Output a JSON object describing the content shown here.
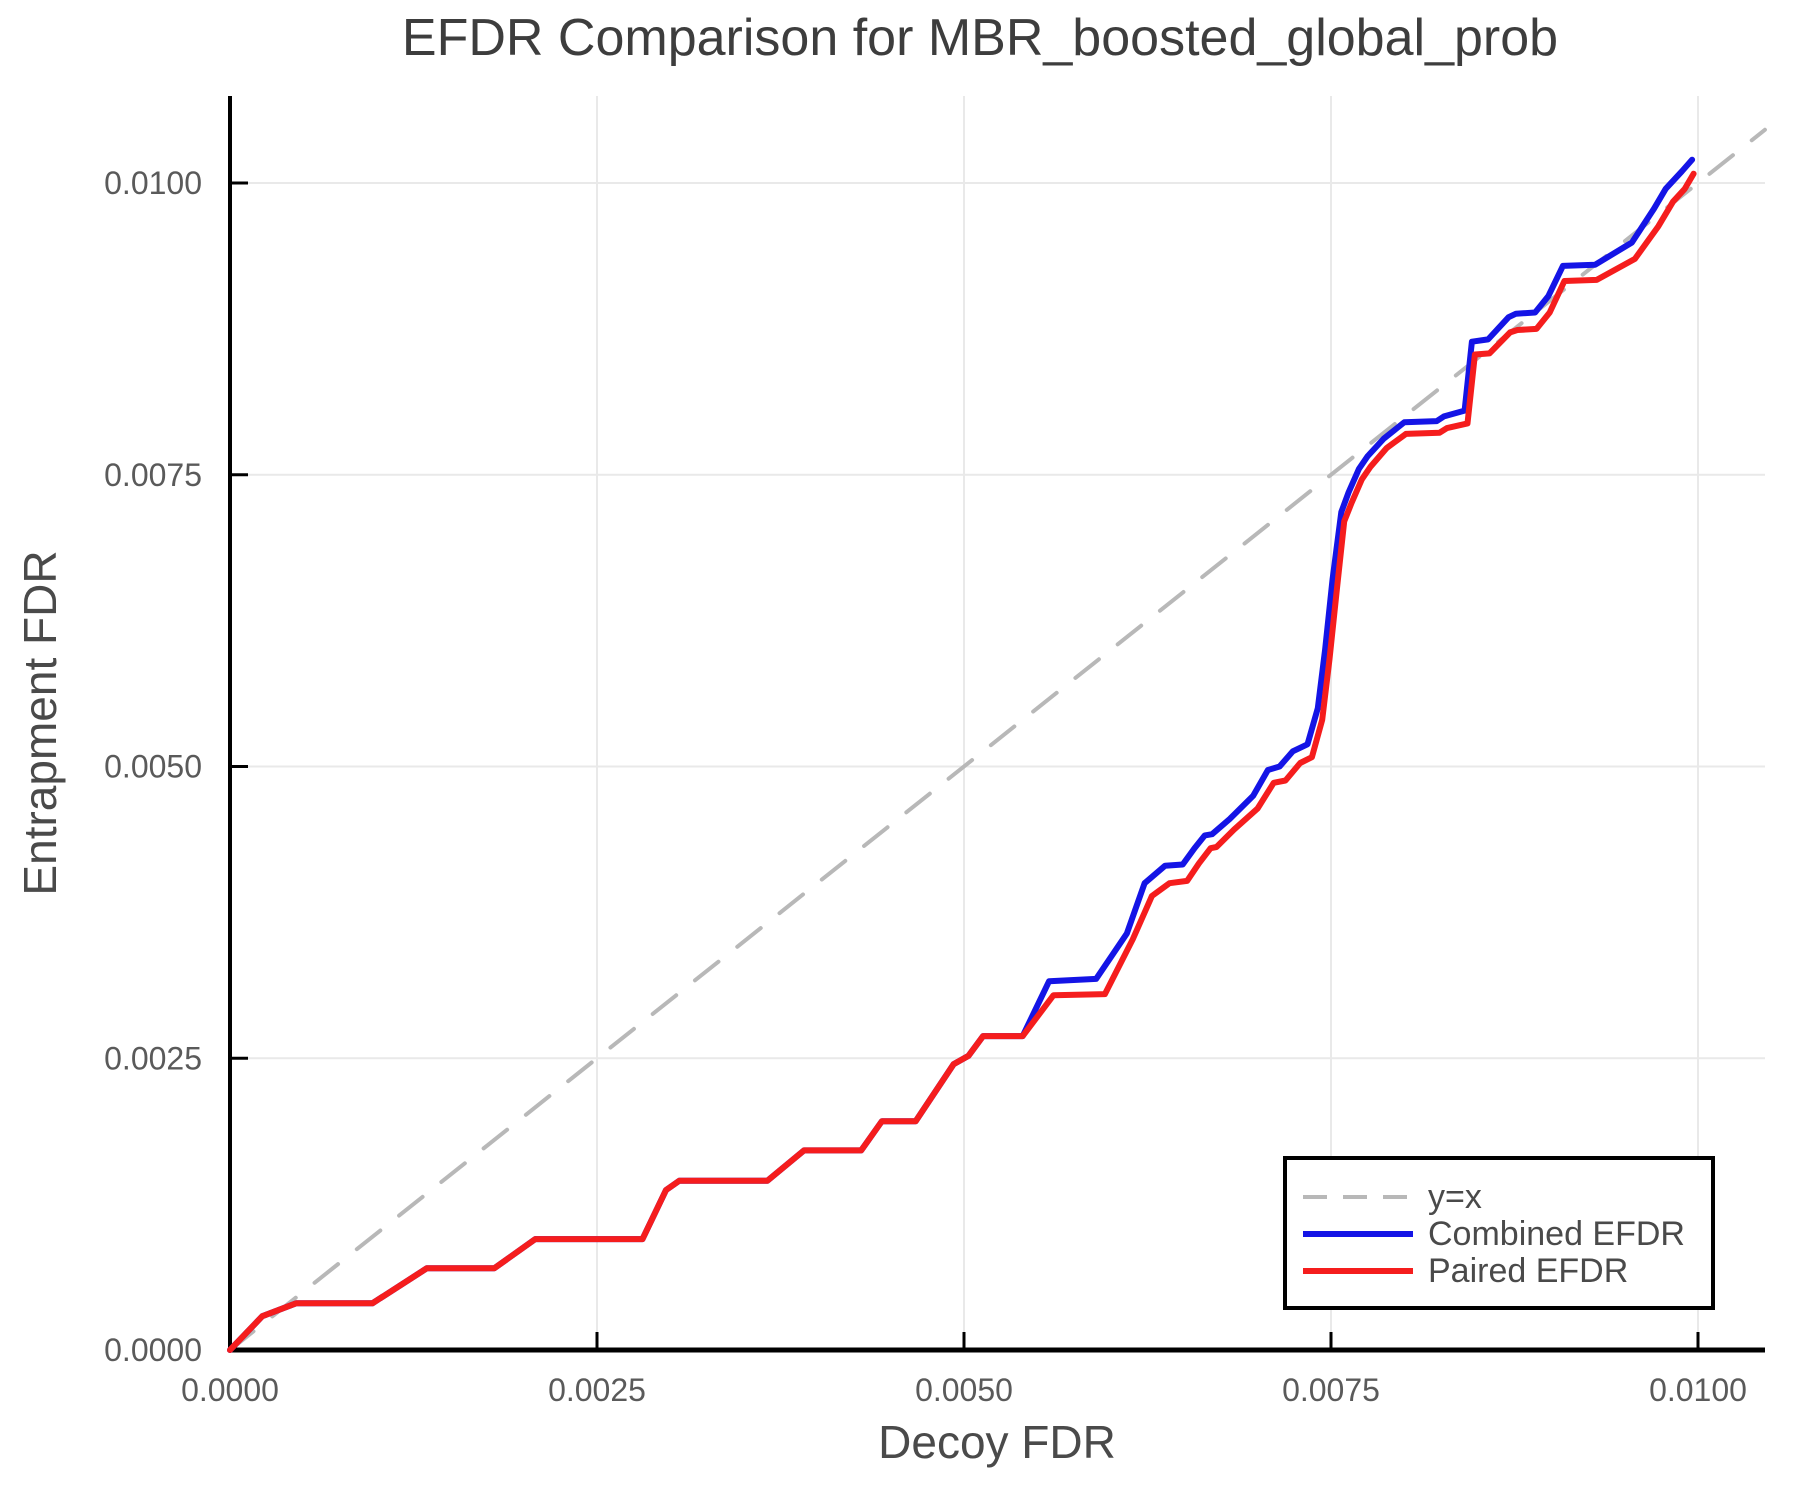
{
  "title": "EFDR Comparison for MBR_boosted_global_prob",
  "axes": {
    "x": {
      "label": "Decoy FDR",
      "tick_values": [
        0.0,
        0.0025,
        0.005,
        0.0075,
        0.01
      ],
      "tick_labels": [
        "0.0000",
        "0.0025",
        "0.0050",
        "0.0075",
        "0.0100"
      ]
    },
    "y": {
      "label": "Entrapment FDR",
      "tick_values": [
        0.0,
        0.0025,
        0.005,
        0.0075,
        0.01
      ],
      "tick_labels": [
        "0.0000",
        "0.0025",
        "0.0050",
        "0.0075",
        "0.0100"
      ]
    }
  },
  "legend": {
    "items": [
      {
        "label": "y=x",
        "color": "#b8b8b8",
        "style": "dashed"
      },
      {
        "label": "Combined EFDR",
        "color": "#1414e6",
        "style": "solid"
      },
      {
        "label": "Paired EFDR",
        "color": "#f51d1d",
        "style": "solid"
      }
    ]
  },
  "colors": {
    "grid": "#e9e9e9",
    "spine": "#000000",
    "identity": "#b8b8b8",
    "combined": "#1414e6",
    "paired": "#f51d1d"
  },
  "chart_data": {
    "type": "line",
    "title": "EFDR Comparison for MBR_boosted_global_prob",
    "xlabel": "Decoy FDR",
    "ylabel": "Entrapment FDR",
    "xlim": [
      0.0,
      0.010456
    ],
    "ylim": [
      0.0,
      0.010745
    ],
    "grid": true,
    "legend_position": "bottom-right",
    "series": [
      {
        "name": "y=x",
        "style": "dashed",
        "color": "#b8b8b8",
        "points": [
          [
            0.0,
            0.0
          ],
          [
            0.010456,
            0.010456
          ]
        ]
      },
      {
        "name": "Combined EFDR",
        "style": "solid",
        "color": "#1414e6",
        "points": [
          [
            0.0,
            0.0
          ],
          [
            0.00022,
            0.00029
          ],
          [
            0.00045,
            0.0004
          ],
          [
            0.00097,
            0.0004
          ],
          [
            0.00134,
            0.0007
          ],
          [
            0.0018,
            0.0007
          ],
          [
            0.00208,
            0.00095
          ],
          [
            0.00281,
            0.00095
          ],
          [
            0.00297,
            0.00137
          ],
          [
            0.00306,
            0.00145
          ],
          [
            0.00366,
            0.00145
          ],
          [
            0.00391,
            0.00171
          ],
          [
            0.0043,
            0.00171
          ],
          [
            0.00444,
            0.00196
          ],
          [
            0.00467,
            0.00196
          ],
          [
            0.00493,
            0.00245
          ],
          [
            0.00503,
            0.00252
          ],
          [
            0.00513,
            0.00269
          ],
          [
            0.0054,
            0.00269
          ],
          [
            0.00558,
            0.00316
          ],
          [
            0.0059,
            0.00318
          ],
          [
            0.00611,
            0.00357
          ],
          [
            0.00623,
            0.004
          ],
          [
            0.00637,
            0.00415
          ],
          [
            0.00649,
            0.00416
          ],
          [
            0.00657,
            0.0043
          ],
          [
            0.00664,
            0.00441
          ],
          [
            0.00669,
            0.00442
          ],
          [
            0.00681,
            0.00455
          ],
          [
            0.00697,
            0.00475
          ],
          [
            0.00707,
            0.00497
          ],
          [
            0.00715,
            0.005
          ],
          [
            0.00724,
            0.00513
          ],
          [
            0.00734,
            0.00519
          ],
          [
            0.00741,
            0.0055
          ],
          [
            0.00746,
            0.006
          ],
          [
            0.00751,
            0.0066
          ],
          [
            0.00757,
            0.00718
          ],
          [
            0.00762,
            0.00735
          ],
          [
            0.00769,
            0.00755
          ],
          [
            0.00775,
            0.00766
          ],
          [
            0.00786,
            0.00781
          ],
          [
            0.008,
            0.00795
          ],
          [
            0.00822,
            0.00796
          ],
          [
            0.00827,
            0.008
          ],
          [
            0.00841,
            0.00805
          ],
          [
            0.00846,
            0.00864
          ],
          [
            0.00857,
            0.00866
          ],
          [
            0.00871,
            0.00885
          ],
          [
            0.00876,
            0.00888
          ],
          [
            0.00889,
            0.00889
          ],
          [
            0.00898,
            0.00903
          ],
          [
            0.00908,
            0.00929
          ],
          [
            0.0093,
            0.0093
          ],
          [
            0.00955,
            0.00949
          ],
          [
            0.0097,
            0.00978
          ],
          [
            0.00978,
            0.00995
          ],
          [
            0.00989,
            0.0101
          ],
          [
            0.00996,
            0.0102
          ]
        ]
      },
      {
        "name": "Paired EFDR",
        "style": "solid",
        "color": "#f51d1d",
        "points": [
          [
            0.0,
            0.0
          ],
          [
            0.00022,
            0.00029
          ],
          [
            0.00045,
            0.0004
          ],
          [
            0.00097,
            0.0004
          ],
          [
            0.00134,
            0.0007
          ],
          [
            0.0018,
            0.0007
          ],
          [
            0.00208,
            0.00095
          ],
          [
            0.00281,
            0.00095
          ],
          [
            0.00297,
            0.00137
          ],
          [
            0.00306,
            0.00145
          ],
          [
            0.00366,
            0.00145
          ],
          [
            0.00391,
            0.00171
          ],
          [
            0.0043,
            0.00171
          ],
          [
            0.00444,
            0.00196
          ],
          [
            0.00467,
            0.00196
          ],
          [
            0.00493,
            0.00245
          ],
          [
            0.00503,
            0.00252
          ],
          [
            0.00513,
            0.00269
          ],
          [
            0.0054,
            0.00269
          ],
          [
            0.00561,
            0.00304
          ],
          [
            0.00596,
            0.00305
          ],
          [
            0.00615,
            0.00352
          ],
          [
            0.00628,
            0.00389
          ],
          [
            0.0064,
            0.004
          ],
          [
            0.00652,
            0.00402
          ],
          [
            0.0066,
            0.00417
          ],
          [
            0.00668,
            0.0043
          ],
          [
            0.00672,
            0.00431
          ],
          [
            0.00684,
            0.00446
          ],
          [
            0.007,
            0.00464
          ],
          [
            0.00711,
            0.00486
          ],
          [
            0.00719,
            0.00488
          ],
          [
            0.00729,
            0.00503
          ],
          [
            0.00737,
            0.00508
          ],
          [
            0.00744,
            0.0054
          ],
          [
            0.00749,
            0.00592
          ],
          [
            0.00754,
            0.00652
          ],
          [
            0.00759,
            0.0071
          ],
          [
            0.00764,
            0.00726
          ],
          [
            0.00771,
            0.00746
          ],
          [
            0.00777,
            0.00757
          ],
          [
            0.00788,
            0.00773
          ],
          [
            0.00801,
            0.00785
          ],
          [
            0.00824,
            0.00786
          ],
          [
            0.00829,
            0.0079
          ],
          [
            0.00843,
            0.00794
          ],
          [
            0.00848,
            0.00853
          ],
          [
            0.00858,
            0.00854
          ],
          [
            0.00872,
            0.00872
          ],
          [
            0.00877,
            0.00874
          ],
          [
            0.0089,
            0.00875
          ],
          [
            0.00899,
            0.00889
          ],
          [
            0.00909,
            0.00916
          ],
          [
            0.00931,
            0.00917
          ],
          [
            0.00957,
            0.00935
          ],
          [
            0.00973,
            0.00963
          ],
          [
            0.00983,
            0.00984
          ],
          [
            0.00991,
            0.00995
          ],
          [
            0.00997,
            0.01008
          ]
        ]
      }
    ]
  }
}
